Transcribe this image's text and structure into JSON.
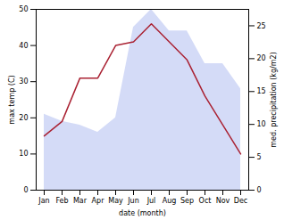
{
  "chart_data": {
    "type": "line",
    "categories": [
      "Jan",
      "Feb",
      "Mar",
      "Apr",
      "May",
      "Jun",
      "Jul",
      "Aug",
      "Sep",
      "Oct",
      "Nov",
      "Dec"
    ],
    "series": [
      {
        "type": "area",
        "color": "#b0bef0",
        "values": [
          21,
          19,
          18,
          16,
          20,
          45,
          50,
          44,
          44,
          35,
          35,
          28
        ]
      },
      {
        "type": "line",
        "color": "#aa2233",
        "values": [
          15,
          19,
          31,
          31,
          40,
          41,
          46,
          41,
          36,
          26,
          18,
          10
        ]
      }
    ],
    "xlabel": "date (month)",
    "ylabel": "max temp (C)",
    "y2label": "med. precipitation (kg/m2)",
    "ylim": [
      0,
      50
    ],
    "yticks": [
      0,
      10,
      20,
      30,
      40,
      50
    ],
    "y2lim": [
      0,
      27.5
    ],
    "y2ticks": [
      0,
      5,
      10,
      15,
      20,
      25
    ],
    "grid": false
  }
}
